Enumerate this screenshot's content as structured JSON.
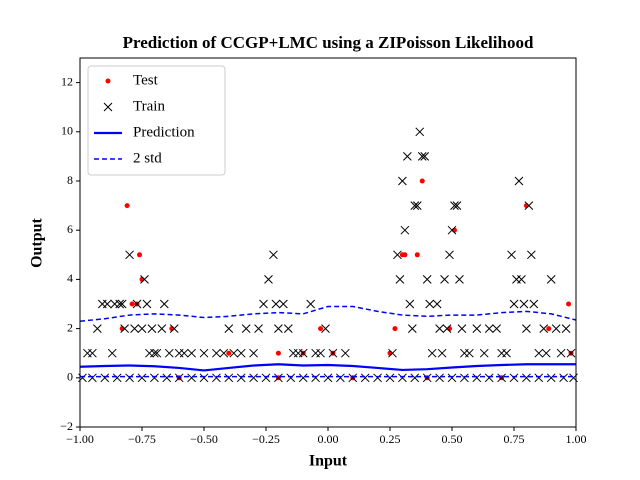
{
  "chart_data": {
    "type": "scatter",
    "title": "Prediction of CCGP+LMC using a ZIPoisson Likelihood",
    "xlabel": "Input",
    "ylabel": "Output",
    "xlim": [
      -1,
      1
    ],
    "ylim": [
      -2,
      13
    ],
    "xticks": [
      {
        "value": -1,
        "label": "−1.00"
      },
      {
        "value": -0.75,
        "label": "−0.75"
      },
      {
        "value": -0.5,
        "label": "−0.50"
      },
      {
        "value": -0.25,
        "label": "−0.25"
      },
      {
        "value": 0,
        "label": "0.00"
      },
      0.25,
      {
        "value": 0.5,
        "label": "0.50"
      },
      0.75,
      {
        "value": 1,
        "label": "1.00"
      }
    ],
    "yticks": [
      {
        "value": -2,
        "label": "−2"
      },
      0,
      2,
      4,
      6,
      8,
      10,
      12
    ],
    "legend": "upper left",
    "series": [
      {
        "name": "Test",
        "color": "#ff0000",
        "marker": "dot",
        "x": [
          -0.83,
          -0.81,
          -0.79,
          -0.77,
          -0.76,
          -0.75,
          -0.63,
          -0.4,
          -0.2,
          -0.1,
          -0.03,
          0.02,
          0.25,
          0.27,
          0.3,
          0.31,
          0.36,
          0.38,
          0.49,
          0.51,
          0.8,
          0.89,
          0.97,
          0.98,
          -0.6,
          -0.2,
          0.1,
          0.4,
          0.7
        ],
        "values": [
          2,
          7,
          3,
          3,
          5,
          4,
          2,
          1,
          1,
          1,
          2,
          1,
          1,
          2,
          5,
          5,
          5,
          8,
          2,
          6,
          7,
          2,
          3,
          1,
          0,
          0,
          0,
          0,
          0
        ]
      },
      {
        "name": "Train",
        "color": "#000000",
        "marker": "x",
        "x": [
          -0.97,
          -0.95,
          -0.93,
          -0.91,
          -0.89,
          -0.87,
          -0.86,
          -0.84,
          -0.83,
          -0.82,
          -0.8,
          -0.78,
          -0.77,
          -0.75,
          -0.74,
          -0.73,
          -0.72,
          -0.71,
          -0.7,
          -0.69,
          -0.67,
          -0.66,
          -0.64,
          -0.62,
          -0.6,
          -0.58,
          -0.55,
          -0.5,
          -0.45,
          -0.42,
          -0.4,
          -0.38,
          -0.35,
          -0.33,
          -0.3,
          -0.28,
          -0.26,
          -0.24,
          -0.22,
          -0.21,
          -0.2,
          -0.18,
          -0.16,
          -0.14,
          -0.12,
          -0.1,
          -0.07,
          -0.05,
          -0.03,
          -0.01,
          0.02,
          0.07,
          0.26,
          0.28,
          0.29,
          0.3,
          0.31,
          0.32,
          0.33,
          0.34,
          0.35,
          0.36,
          0.37,
          0.38,
          0.39,
          0.4,
          0.41,
          0.42,
          0.44,
          0.45,
          0.46,
          0.47,
          0.48,
          0.49,
          0.5,
          0.51,
          0.52,
          0.53,
          0.54,
          0.55,
          0.57,
          0.6,
          0.63,
          0.65,
          0.68,
          0.7,
          0.72,
          0.74,
          0.75,
          0.76,
          0.77,
          0.78,
          0.79,
          0.8,
          0.81,
          0.82,
          0.83,
          0.85,
          0.87,
          0.88,
          0.9,
          0.92,
          0.94,
          0.96,
          0.98,
          -0.99,
          -0.95,
          -0.9,
          -0.85,
          -0.8,
          -0.75,
          -0.7,
          -0.65,
          -0.6,
          -0.55,
          -0.5,
          -0.45,
          -0.4,
          -0.35,
          -0.3,
          -0.25,
          -0.2,
          -0.15,
          -0.1,
          -0.05,
          0,
          0.05,
          0.1,
          0.15,
          0.2,
          0.25,
          0.3,
          0.35,
          0.4,
          0.45,
          0.5,
          0.55,
          0.6,
          0.65,
          0.7,
          0.75,
          0.8,
          0.85,
          0.9,
          0.95,
          0.99
        ],
        "values": [
          1,
          1,
          2,
          3,
          3,
          1,
          3,
          3,
          3,
          2,
          5,
          2,
          3,
          2,
          4,
          3,
          1,
          2,
          1,
          1,
          2,
          3,
          1,
          2,
          1,
          1,
          1,
          1,
          1,
          1,
          2,
          1,
          1,
          2,
          1,
          2,
          3,
          4,
          5,
          3,
          2,
          3,
          2,
          1,
          1,
          1,
          3,
          1,
          1,
          2,
          1,
          1,
          1,
          5,
          4,
          8,
          6,
          9,
          3,
          2,
          7,
          7,
          10,
          9,
          9,
          4,
          3,
          1,
          3,
          2,
          1,
          4,
          2,
          5,
          6,
          7,
          7,
          4,
          2,
          1,
          1,
          2,
          1,
          2,
          2,
          1,
          1,
          5,
          3,
          4,
          8,
          4,
          3,
          2,
          7,
          5,
          3,
          1,
          2,
          1,
          4,
          2,
          1,
          2,
          1,
          0,
          0,
          0,
          0,
          0,
          0,
          0,
          0,
          0,
          0,
          0,
          0,
          0,
          0,
          0,
          0,
          0,
          0,
          0,
          0,
          0,
          0,
          0,
          0,
          0,
          0,
          0,
          0,
          0,
          0,
          0,
          0,
          0,
          0,
          0,
          0,
          0,
          0,
          0,
          0,
          0
        ]
      },
      {
        "name": "Prediction",
        "color": "#0000ff",
        "marker": "line",
        "x": [
          -1,
          -0.9,
          -0.8,
          -0.7,
          -0.6,
          -0.5,
          -0.4,
          -0.3,
          -0.2,
          -0.1,
          0,
          0.1,
          0.2,
          0.3,
          0.4,
          0.5,
          0.6,
          0.7,
          0.8,
          0.9,
          1
        ],
        "values": [
          0.45,
          0.48,
          0.5,
          0.47,
          0.4,
          0.3,
          0.4,
          0.5,
          0.55,
          0.5,
          0.52,
          0.48,
          0.4,
          0.32,
          0.35,
          0.42,
          0.48,
          0.52,
          0.55,
          0.55,
          0.55
        ]
      },
      {
        "name": "2 std",
        "color": "#0000ff",
        "marker": "dashed",
        "x": [
          -1,
          -0.9,
          -0.8,
          -0.7,
          -0.6,
          -0.5,
          -0.4,
          -0.3,
          -0.2,
          -0.1,
          0,
          0.1,
          0.2,
          0.3,
          0.4,
          0.5,
          0.6,
          0.7,
          0.8,
          0.9,
          1
        ],
        "values": [
          2.3,
          2.4,
          2.55,
          2.6,
          2.55,
          2.45,
          2.5,
          2.6,
          2.65,
          2.6,
          2.9,
          2.9,
          2.7,
          2.55,
          2.5,
          2.55,
          2.55,
          2.65,
          2.7,
          2.6,
          2.35
        ],
        "values_lower": [
          0.05,
          0.05,
          0.05,
          0.05,
          0.05,
          0.05,
          0.05,
          0.05,
          0.05,
          0.05,
          0.05,
          0.05,
          0.05,
          0.05,
          0.05,
          0.05,
          0.05,
          0.05,
          0.05,
          0.05,
          0.05
        ]
      }
    ]
  }
}
